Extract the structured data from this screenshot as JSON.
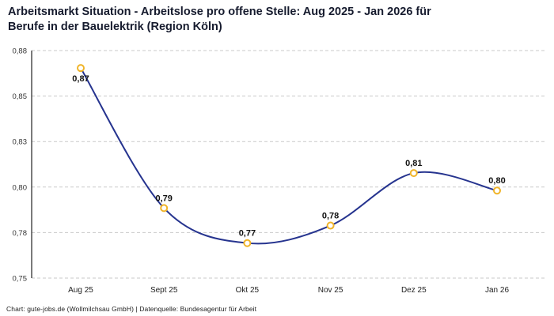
{
  "header": {
    "title_line1": "Arbeitsmarkt Situation - Arbeitslose pro offene Stelle: Aug 2025 - Jan 2026 für",
    "title_line2": "Berufe in der Bauelektrik (Region Köln)"
  },
  "footer": {
    "credit": "Chart: gute-jobs.de (Wollmilchsau GmbH) | Datenquelle: Bundesagentur für Arbeit"
  },
  "chart_data": {
    "type": "line",
    "title": "Arbeitsmarkt Situation - Arbeitslose pro offene Stelle: Aug 2025 - Jan 2026 für Berufe in der Bauelektrik (Region Köln)",
    "categories": [
      "Aug 25",
      "Sept 25",
      "Okt 25",
      "Nov 25",
      "Dez 25",
      "Jan 26"
    ],
    "values": [
      0.87,
      0.79,
      0.77,
      0.78,
      0.81,
      0.8
    ],
    "point_labels": [
      "0,87",
      "0,79",
      "0,77",
      "0,78",
      "0,81",
      "0,80"
    ],
    "label_positions": [
      "below",
      "above",
      "above",
      "above",
      "above",
      "above"
    ],
    "xlabel": "",
    "ylabel": "",
    "ylim": [
      0.75,
      0.88
    ],
    "y_ticks": [
      {
        "value": 0.88,
        "label": "0,88"
      },
      {
        "value": 0.854,
        "label": "0,85"
      },
      {
        "value": 0.828,
        "label": "0,83"
      },
      {
        "value": 0.802,
        "label": "0,80"
      },
      {
        "value": 0.776,
        "label": "0,78"
      },
      {
        "value": 0.75,
        "label": "0,75"
      }
    ],
    "grid": "dashed-horizontal",
    "legend": "none",
    "colors": {
      "line": "#26348f",
      "marker_stroke": "#f0b429",
      "marker_fill": "#ffffff",
      "grid": "#c9c9c9",
      "axis": "#222222",
      "title": "#161b2e"
    }
  }
}
